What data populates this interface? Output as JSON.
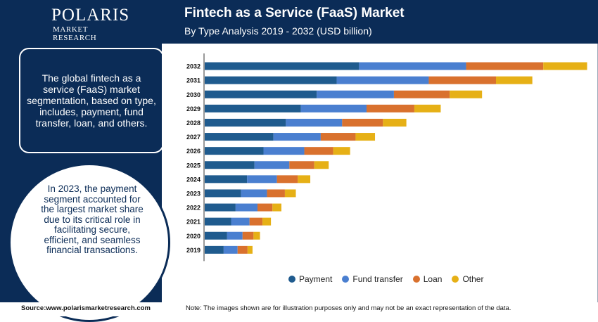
{
  "logo": {
    "main": "POLARIS",
    "sub": "MARKET RESEARCH"
  },
  "header": {
    "title": "Fintech as a Service (FaaS) Market",
    "subtitle": "By Type Analysis 2019 - 2032 (USD billion)"
  },
  "info_box": {
    "text": "The global fintech as a service (FaaS) market segmentation, based on type, includes, payment, fund transfer, loan, and others."
  },
  "circle": {
    "text": "In 2023, the payment segment accounted for the largest market share due to its critical role in facilitating secure, efficient, and seamless financial transactions."
  },
  "footer": {
    "source": "Source:www.polarismarketresearch.com",
    "note": "Note: The images shown are for illustration purposes only and may not be an exact representation of the data."
  },
  "colors": {
    "navy": "#0b2c57",
    "payment": "#1f5b8e",
    "fund_transfer": "#4a7fd0",
    "loan": "#d9712e",
    "other": "#e6b016"
  },
  "chart_data": {
    "type": "bar",
    "orientation": "horizontal",
    "stacked": true,
    "categories": [
      "2032",
      "2031",
      "2030",
      "2029",
      "2028",
      "2027",
      "2026",
      "2025",
      "2024",
      "2023",
      "2022",
      "2021",
      "2020",
      "2019"
    ],
    "series": [
      {
        "name": "Payment",
        "color": "#1f5b8e",
        "values": [
          31,
          26.5,
          22.5,
          19.3,
          16.3,
          13.8,
          11.8,
          10.0,
          8.5,
          7.3,
          6.2,
          5.3,
          4.5,
          3.8
        ]
      },
      {
        "name": "Fund transfer",
        "color": "#4a7fd0",
        "values": [
          21.5,
          18.5,
          15.5,
          13.2,
          11.3,
          9.5,
          8.2,
          7.0,
          6.0,
          5.2,
          4.4,
          3.7,
          3.1,
          2.8
        ]
      },
      {
        "name": "Loan",
        "color": "#d9712e",
        "values": [
          15.5,
          13.5,
          11.2,
          9.6,
          8.2,
          7.0,
          5.8,
          5.0,
          4.2,
          3.6,
          3.0,
          2.6,
          2.2,
          2.0
        ]
      },
      {
        "name": "Other",
        "color": "#e6b016",
        "values": [
          8.8,
          7.3,
          6.5,
          5.3,
          4.7,
          3.9,
          3.4,
          2.9,
          2.5,
          2.2,
          1.8,
          1.7,
          1.3,
          1.0
        ]
      }
    ],
    "xlim": [
      0,
      78
    ],
    "legend_position": "bottom"
  }
}
